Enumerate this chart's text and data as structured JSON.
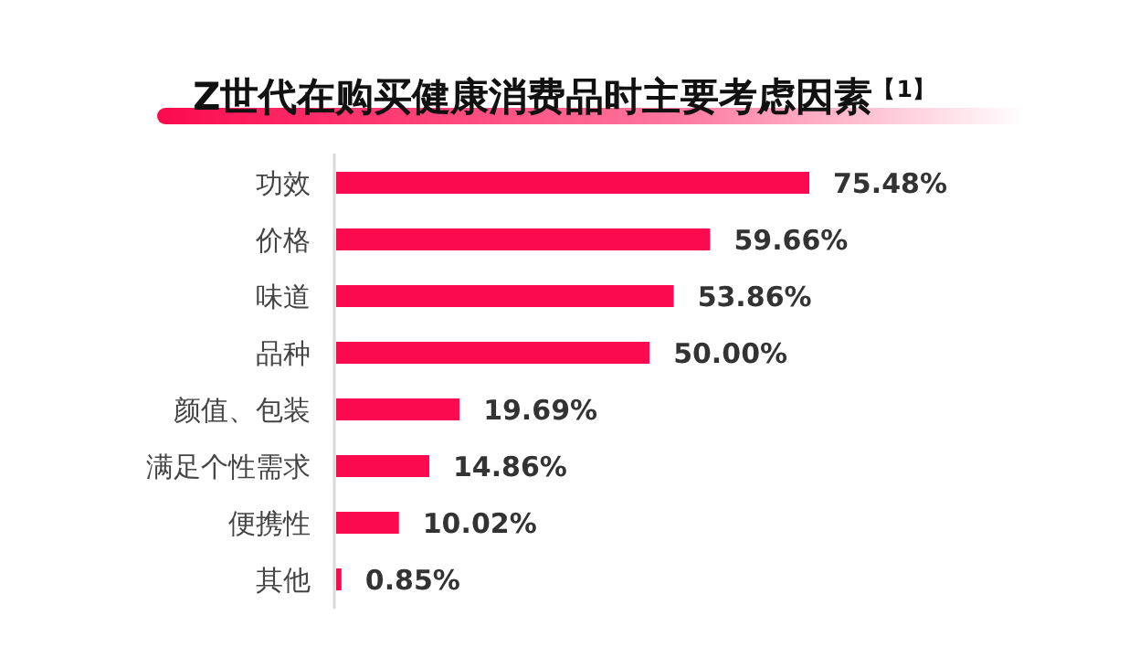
{
  "chart_data": {
    "type": "bar",
    "orientation": "horizontal",
    "title": "Z世代在购买健康消费品时主要考虑因素$^{【1】}$",
    "categories": [
      "功效",
      "价格",
      "味道",
      "品种",
      "颜值、包装",
      "满足个性需求",
      "便携性",
      "其他"
    ],
    "values": [
      75.48,
      59.66,
      53.86,
      50.0,
      19.69,
      14.86,
      10.02,
      0.85
    ],
    "value_labels": [
      "75.48%",
      "59.66%",
      "53.86%",
      "50.00%",
      "19.69%",
      "14.86%",
      "10.02%",
      "0.85%"
    ],
    "color": "#fb0a4f"
  }
}
